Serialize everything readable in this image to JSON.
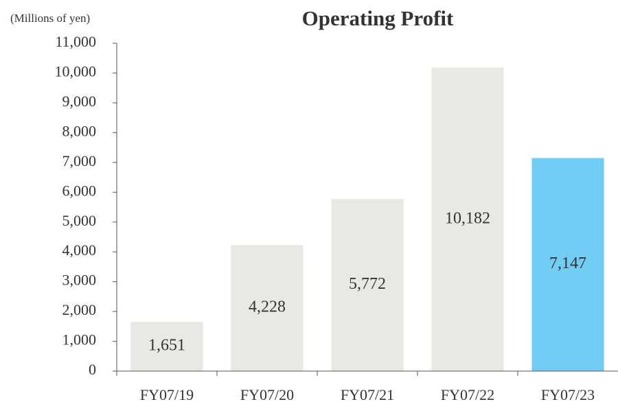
{
  "chart_data": {
    "type": "bar",
    "title": "Operating Profit",
    "y_axis_label": "(Millions of yen)",
    "categories": [
      "FY07/19",
      "FY07/20",
      "FY07/21",
      "FY07/22",
      "FY07/23"
    ],
    "values": [
      1651,
      4228,
      5772,
      10182,
      7147
    ],
    "value_labels": [
      "1,651",
      "4,228",
      "5,772",
      "10,182",
      "7,147"
    ],
    "colors": [
      "#e8e8e4",
      "#e8e8e4",
      "#e8e8e4",
      "#e8e8e4",
      "#72cdf4"
    ],
    "ylim": [
      0,
      11000
    ],
    "yticks": [
      0,
      {
        "value": 1000,
        "label": "1,000"
      },
      {
        "value": 2000,
        "label": "2,000"
      },
      {
        "value": 3000,
        "label": "3,000"
      },
      {
        "value": 4000,
        "label": "4,000"
      },
      {
        "value": 5000,
        "label": "5,000"
      },
      {
        "value": 6000,
        "label": "6,000"
      },
      {
        "value": 7000,
        "label": "7,000"
      },
      {
        "value": 8000,
        "label": "8,000"
      },
      {
        "value": 9000,
        "label": "9,000"
      },
      {
        "value": 10000,
        "label": "10,000"
      },
      {
        "value": 11000,
        "label": "11,000"
      }
    ],
    "grid": false
  }
}
